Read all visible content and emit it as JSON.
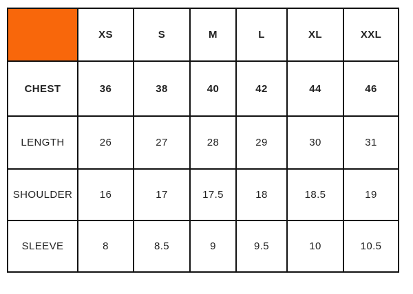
{
  "table": {
    "accent_color": "#f8670b",
    "border_color": "#111111",
    "text_color": "#222222"
  },
  "chart_data": {
    "type": "table",
    "columns": [
      "",
      "XS",
      "S",
      "M",
      "L",
      "XL",
      "XXL"
    ],
    "rows": [
      {
        "label": "CHEST",
        "values": [
          "36",
          "38",
          "40",
          "42",
          "44",
          "46"
        ]
      },
      {
        "label": "LENGTH",
        "values": [
          "26",
          "27",
          "28",
          "29",
          "30",
          "31"
        ]
      },
      {
        "label": "SHOULDER",
        "values": [
          "16",
          "17",
          "17.5",
          "18",
          "18.5",
          "19"
        ]
      },
      {
        "label": "SLEEVE",
        "values": [
          "8",
          "8.5",
          "9",
          "9.5",
          "10",
          "10.5"
        ]
      }
    ]
  }
}
